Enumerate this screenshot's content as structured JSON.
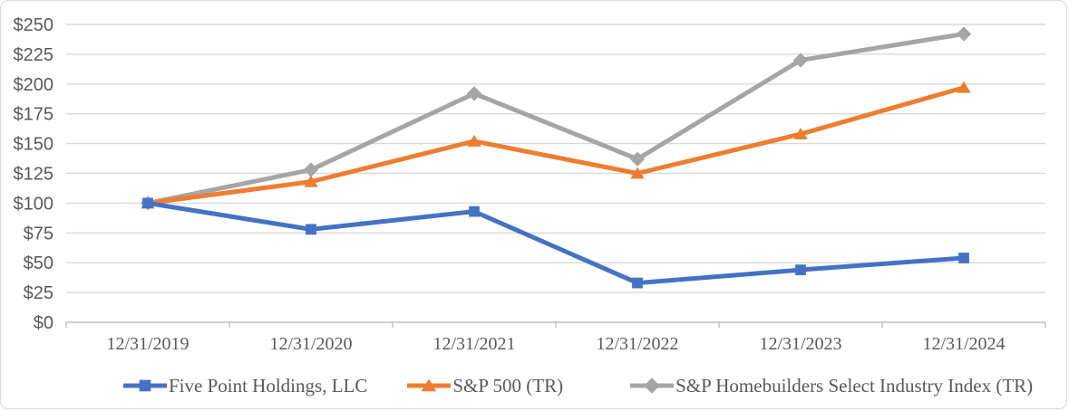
{
  "chart_data": {
    "type": "line",
    "title": "",
    "xlabel": "",
    "ylabel": "",
    "categories": [
      "12/31/2019",
      "12/31/2020",
      "12/31/2021",
      "12/31/2022",
      "12/31/2023",
      "12/31/2024"
    ],
    "series": [
      {
        "name": "Five Point Holdings, LLC",
        "color": "#4472C4",
        "marker": "square",
        "values": [
          100,
          78,
          93,
          33,
          44,
          54
        ]
      },
      {
        "name": "S&P 500 (TR)",
        "color": "#ED7D31",
        "marker": "triangle",
        "values": [
          100,
          118,
          152,
          125,
          158,
          197
        ]
      },
      {
        "name": "S&P Homebuilders Select Industry Index (TR)",
        "color": "#A5A5A5",
        "marker": "diamond",
        "values": [
          100,
          128,
          192,
          137,
          220,
          242
        ]
      }
    ],
    "ylim": [
      0,
      250
    ],
    "ytick_step": 25,
    "y_tick_labels": [
      "$0",
      "$25",
      "$50",
      "$75",
      "$100",
      "$125",
      "$150",
      "$175",
      "$200",
      "$225",
      "$250"
    ],
    "grid": true,
    "legend_position": "bottom",
    "styles": {
      "gridline_color": "#D9D9D9",
      "axis_line_color": "#BFBFBF",
      "tick_label_color": "#595959",
      "legend_text_color": "#595959",
      "background_color": "#FFFFFF",
      "frame_border_color": "#D9D9D9"
    }
  }
}
